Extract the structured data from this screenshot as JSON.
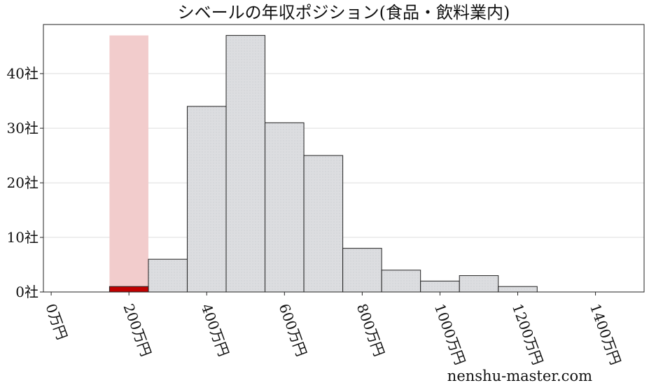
{
  "chart_data": {
    "type": "bar",
    "title": "シベールの年収ポジション(食品・飲料業内)",
    "xlabel": "",
    "ylabel": "",
    "x_unit_suffix": "万円",
    "y_unit_suffix": "社",
    "bin_width": 100,
    "bin_starts": [
      250,
      350,
      450,
      550,
      650,
      750,
      850,
      950,
      1050,
      1150
    ],
    "values": [
      6,
      34,
      47,
      31,
      25,
      8,
      4,
      2,
      3,
      1
    ],
    "highlight": {
      "bin_start": 150,
      "bin_end": 250,
      "value": 1,
      "band_top": 47
    },
    "xlim": [
      -20,
      1525
    ],
    "ylim": [
      0,
      49
    ],
    "x_ticks": [
      0,
      200,
      400,
      600,
      800,
      1000,
      1200,
      1400
    ],
    "x_tick_labels": [
      "0万円",
      "200万円",
      "400万円",
      "600万円",
      "800万円",
      "1000万円",
      "1200万円",
      "1400万円"
    ],
    "y_ticks": [
      0,
      10,
      20,
      30,
      40
    ],
    "y_tick_labels": [
      "0社",
      "10社",
      "20社",
      "30社",
      "40社"
    ],
    "grid": "horizontal",
    "colors": {
      "bar_fill": "#dcdde0",
      "bar_edge": "#222222",
      "highlight_bar": "#c00000",
      "highlight_band": "#f2cccc",
      "grid": "#dddddd"
    }
  },
  "watermark": "nenshu-master.com"
}
